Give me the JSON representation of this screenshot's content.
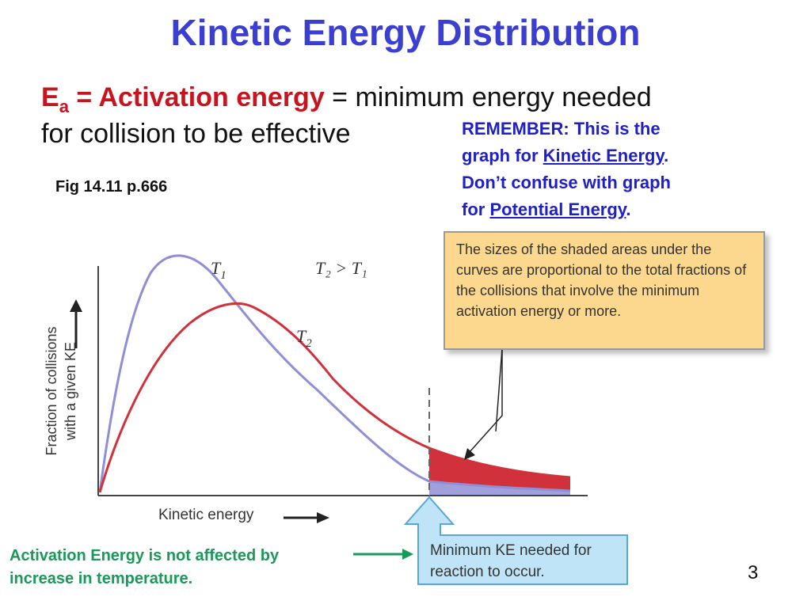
{
  "title": "Kinetic Energy Distribution",
  "definition": {
    "symbol": "E",
    "subscript": "a",
    "term": " = Activation energy",
    "rest_line1": " = minimum energy needed",
    "rest_line2": "for collision to be effective"
  },
  "figure_ref": "Fig 14.11 p.666",
  "remember": {
    "line1": "REMEMBER: This is the",
    "line2_prefix": "graph for ",
    "link1": "Kinetic Energy",
    "line2_suffix": ".",
    "line3": "Don’t confuse with graph",
    "line4_prefix": "for ",
    "link2": "Potential Energy",
    "line4_suffix": "."
  },
  "callout_note": "The sizes of the shaded areas under the curves are proportional to the total fractions of the collisions that involve the minimum activation energy or more.",
  "min_ke_label": "Minimum KE needed for reaction to occur.",
  "side_note": {
    "line1": "Activation Energy is not affected by",
    "line2": "increase in temperature."
  },
  "page_number": "3",
  "diagram": {
    "y_axis_label_line1": "Fraction of collisions",
    "y_axis_label_line2": "with a given KE",
    "x_axis_label": "Kinetic energy",
    "curve1_label": "T",
    "curve1_sub": "1",
    "curve2_label": "T",
    "curve2_sub": "2",
    "relation": "T₂ > T₁",
    "colors": {
      "T1": "#8f8fd6",
      "T2": "#d1313a",
      "title": "#3b3fd1",
      "remember": "#1f1fc8",
      "note_bg": "#fcd88f",
      "arrow_fill": "#bfe4f7",
      "arrow_stroke": "#59a7d6",
      "side_arrow": "#1a9a58"
    }
  }
}
